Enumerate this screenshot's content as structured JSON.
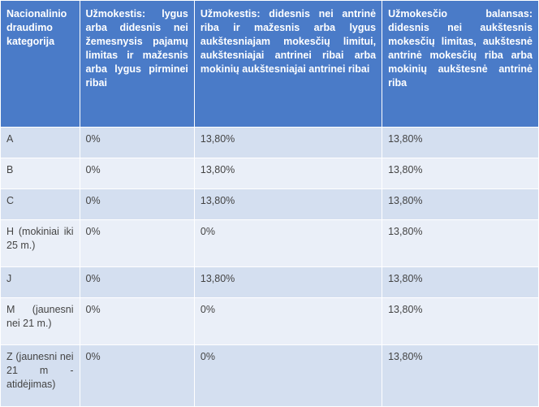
{
  "table": {
    "headers": [
      "Nacionalinio draudimo kategorija",
      "Užmokestis: lygus arba didesnis nei žemesnysis pajamų limitas ir mažesnis arba lygus pirminei ribai",
      "Užmokestis: didesnis nei antrinė riba ir mažesnis arba lygus aukštesniajam mokesčių limitui, aukštesniajai antrinei ribai arba mokinių aukštesniajai antrinei ribai",
      "Užmokesčio balansas: didesnis nei aukštesnis mokesčių limitas, aukštesnė antrinė mokesčių riba arba mokinių aukštesnė antrinė riba"
    ],
    "rows": [
      [
        "A",
        "0%",
        "13,80%",
        "13,80%"
      ],
      [
        "B",
        "0%",
        "13,80%",
        "13,80%"
      ],
      [
        "C",
        "0%",
        "13,80%",
        "13,80%"
      ],
      [
        "H (mokiniai iki 25 m.)",
        "0%",
        "0%",
        "13,80%"
      ],
      [
        "J",
        "0%",
        "13,80%",
        "13,80%"
      ],
      [
        "M (jaunesni nei 21 m.)",
        "0%",
        "0%",
        "13,80%"
      ],
      [
        "Z (jaunesni nei 21 m - atidėjimas)",
        "0%",
        "0%",
        "13,80%"
      ]
    ]
  },
  "colors": {
    "header_bg": "#4a7bc8",
    "row_dark": "#d4dff0",
    "row_light": "#eaeff8"
  }
}
